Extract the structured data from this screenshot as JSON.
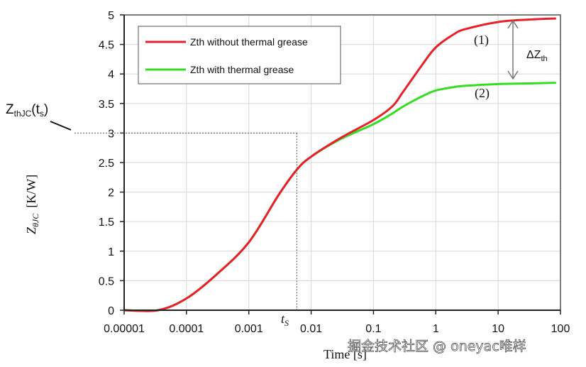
{
  "chart_data": {
    "type": "line",
    "title": "",
    "xlabel": "Time  [s]",
    "ylabel": "Z_θJC  [K/W]",
    "ylabel_main": "Z",
    "ylabel_sub": "θJC",
    "ylabel_unit": "[K/W]",
    "xscale": "log",
    "xlim": [
      1e-05,
      100
    ],
    "ylim": [
      0,
      5
    ],
    "grid": true,
    "xticks": [
      "0.00001",
      "0.0001",
      "0.001",
      "0.01",
      "0.1",
      "1",
      "10",
      "100"
    ],
    "xtick_values": [
      1e-05,
      0.0001,
      0.001,
      0.01,
      0.1,
      1,
      10,
      100
    ],
    "yticks": [
      "0",
      "0.5",
      "1",
      "1.5",
      "2",
      "2.5",
      "3",
      "3.5",
      "4",
      "4.5",
      "5"
    ],
    "ytick_values": [
      0,
      0.5,
      1,
      1.5,
      2,
      2.5,
      3,
      3.5,
      4,
      4.5,
      5
    ],
    "legend_placement": "top-left",
    "series": [
      {
        "name": "Zth without thermal grease",
        "color": "#e8202a",
        "x": [
          1e-05,
          3.5e-05,
          0.0001,
          0.0003,
          0.001,
          0.003,
          0.0059,
          0.01,
          0.03,
          0.1,
          0.2,
          0.3,
          0.6,
          1,
          2,
          3,
          10,
          30,
          85
        ],
        "y": [
          0,
          0,
          0.2,
          0.6,
          1.15,
          1.95,
          2.38,
          2.6,
          2.92,
          3.22,
          3.45,
          3.7,
          4.15,
          4.45,
          4.68,
          4.76,
          4.88,
          4.92,
          4.94
        ]
      },
      {
        "name": "Zth with thermal grease",
        "color": "#33dd22",
        "x": [
          1e-05,
          3.5e-05,
          0.0001,
          0.0003,
          0.001,
          0.003,
          0.0059,
          0.01,
          0.03,
          0.1,
          0.2,
          0.3,
          0.6,
          1,
          2,
          3,
          10,
          30,
          85
        ],
        "y": [
          0,
          0,
          0.2,
          0.6,
          1.15,
          1.95,
          2.38,
          2.6,
          2.9,
          3.15,
          3.33,
          3.45,
          3.62,
          3.72,
          3.78,
          3.8,
          3.83,
          3.84,
          3.85
        ]
      }
    ],
    "annotations": {
      "curve1_label": "(1)",
      "curve2_label": "(2)",
      "delta_main": "ΔZ",
      "delta_sub": "th",
      "ts_main": "t",
      "ts_sub": "S",
      "zth_main": "Z",
      "zth_sub": "thJC",
      "zth_paren_open": "(t",
      "zth_paren_sub": "s",
      "zth_paren_close": ")",
      "ts_value": 0.0059,
      "zth_at_ts": 3
    }
  },
  "watermark": "掘金技术社区 @ oneyac唯样"
}
